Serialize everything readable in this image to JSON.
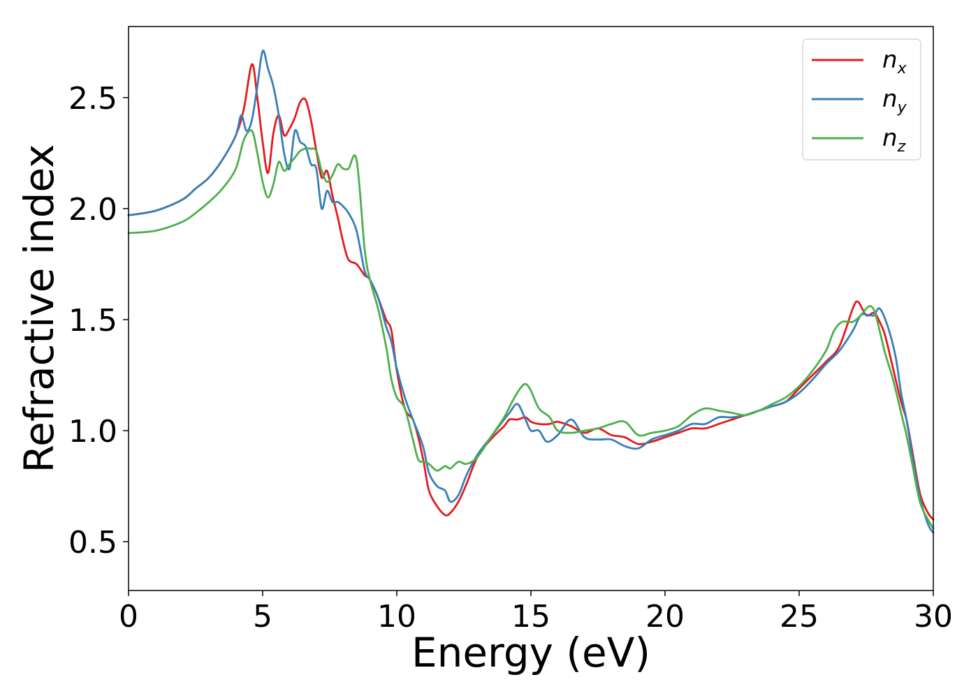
{
  "chart_data": {
    "type": "line",
    "title": "",
    "xlabel": "Energy (eV)",
    "ylabel": "Refractive index",
    "xlim": [
      0,
      30
    ],
    "ylim": [
      0.28,
      2.82
    ],
    "xticks": [
      "0",
      "5",
      "10",
      "15",
      "20",
      "25",
      "30"
    ],
    "yticks": [
      "0.5",
      "1.0",
      "1.5",
      "2.0",
      "2.5"
    ],
    "grid": false,
    "legend_position": "top-right",
    "series": [
      {
        "name": "n_x",
        "label_base": "n",
        "label_sub": "x",
        "color": "#e41a1c",
        "x": [
          0,
          1,
          2,
          2.5,
          3,
          3.5,
          4,
          4.3,
          4.6,
          4.8,
          5.0,
          5.2,
          5.4,
          5.6,
          5.8,
          6.0,
          6.2,
          6.4,
          6.6,
          6.8,
          7.0,
          7.2,
          7.4,
          7.6,
          7.8,
          8.0,
          8.2,
          8.5,
          8.8,
          9.0,
          9.3,
          9.6,
          9.8,
          10.0,
          10.3,
          10.6,
          10.8,
          11.0,
          11.2,
          11.5,
          11.8,
          12.0,
          12.3,
          12.6,
          13.0,
          13.5,
          14.0,
          14.2,
          14.5,
          14.8,
          15.0,
          15.3,
          15.7,
          16.0,
          16.5,
          17.0,
          17.5,
          18.0,
          18.5,
          19.0,
          19.5,
          20.0,
          20.5,
          21.0,
          21.5,
          22.0,
          22.5,
          23.0,
          23.5,
          24.0,
          24.5,
          25.0,
          25.5,
          26.0,
          26.5,
          27.0,
          27.2,
          27.5,
          27.8,
          28.0,
          28.2,
          28.5,
          28.8,
          29.0,
          29.2,
          29.5,
          29.8,
          30.0
        ],
        "y": [
          1.97,
          1.99,
          2.04,
          2.09,
          2.14,
          2.22,
          2.33,
          2.45,
          2.65,
          2.5,
          2.3,
          2.16,
          2.34,
          2.42,
          2.33,
          2.36,
          2.41,
          2.48,
          2.49,
          2.4,
          2.26,
          2.14,
          2.17,
          2.06,
          1.96,
          1.85,
          1.77,
          1.75,
          1.7,
          1.68,
          1.6,
          1.5,
          1.45,
          1.27,
          1.1,
          1.05,
          0.97,
          0.86,
          0.73,
          0.66,
          0.62,
          0.63,
          0.68,
          0.76,
          0.88,
          0.96,
          1.02,
          1.05,
          1.05,
          1.06,
          1.04,
          1.03,
          1.03,
          1.04,
          1.02,
          0.99,
          1.01,
          0.98,
          0.97,
          0.94,
          0.95,
          0.97,
          0.99,
          1.01,
          1.01,
          1.03,
          1.05,
          1.07,
          1.09,
          1.11,
          1.13,
          1.19,
          1.25,
          1.31,
          1.38,
          1.55,
          1.58,
          1.52,
          1.53,
          1.49,
          1.43,
          1.28,
          1.13,
          1.05,
          0.92,
          0.72,
          0.63,
          0.6
        ]
      },
      {
        "name": "n_y",
        "label_base": "n",
        "label_sub": "y",
        "color": "#377eb8",
        "x": [
          0,
          1,
          2,
          2.5,
          3,
          3.5,
          4,
          4.2,
          4.4,
          4.6,
          4.8,
          5.0,
          5.2,
          5.4,
          5.6,
          5.8,
          6.0,
          6.2,
          6.4,
          6.6,
          6.8,
          7.0,
          7.2,
          7.4,
          7.6,
          7.8,
          8.0,
          8.2,
          8.5,
          8.8,
          9.0,
          9.3,
          9.6,
          9.8,
          10.0,
          10.3,
          10.6,
          10.8,
          11.0,
          11.2,
          11.5,
          11.8,
          12.0,
          12.3,
          12.6,
          13.0,
          13.5,
          14.0,
          14.2,
          14.5,
          14.8,
          15.0,
          15.3,
          15.6,
          16.0,
          16.5,
          17.0,
          17.5,
          18.0,
          18.5,
          19.0,
          19.5,
          20.0,
          20.5,
          21.0,
          21.5,
          22.0,
          22.5,
          23.0,
          23.5,
          24.0,
          24.5,
          25.0,
          25.5,
          26.0,
          26.5,
          27.0,
          27.3,
          27.6,
          27.8,
          28.0,
          28.3,
          28.6,
          28.8,
          29.0,
          29.2,
          29.5,
          29.8,
          30.0
        ],
        "y": [
          1.97,
          1.99,
          2.04,
          2.09,
          2.14,
          2.22,
          2.33,
          2.42,
          2.35,
          2.4,
          2.55,
          2.71,
          2.63,
          2.55,
          2.42,
          2.25,
          2.18,
          2.35,
          2.3,
          2.28,
          2.2,
          2.18,
          2.0,
          2.08,
          2.03,
          2.03,
          2.01,
          1.98,
          1.9,
          1.72,
          1.68,
          1.6,
          1.47,
          1.4,
          1.28,
          1.15,
          1.05,
          0.99,
          0.92,
          0.81,
          0.75,
          0.73,
          0.68,
          0.71,
          0.8,
          0.89,
          0.97,
          1.05,
          1.08,
          1.12,
          1.05,
          1.0,
          1.0,
          0.95,
          0.98,
          1.05,
          0.97,
          0.96,
          0.96,
          0.93,
          0.92,
          0.96,
          0.98,
          1.0,
          1.03,
          1.03,
          1.06,
          1.06,
          1.07,
          1.09,
          1.11,
          1.13,
          1.17,
          1.23,
          1.3,
          1.36,
          1.45,
          1.52,
          1.52,
          1.52,
          1.55,
          1.47,
          1.33,
          1.17,
          1.05,
          0.9,
          0.7,
          0.58,
          0.54
        ]
      },
      {
        "name": "n_z",
        "label_base": "n",
        "label_sub": "z",
        "color": "#4daf4a",
        "x": [
          0,
          1,
          2,
          2.5,
          3,
          3.5,
          4,
          4.3,
          4.6,
          4.8,
          5.0,
          5.2,
          5.4,
          5.6,
          5.8,
          6.0,
          6.2,
          6.4,
          6.6,
          6.8,
          7.0,
          7.2,
          7.4,
          7.6,
          7.8,
          8.0,
          8.2,
          8.5,
          8.8,
          9.0,
          9.3,
          9.6,
          9.8,
          10.0,
          10.3,
          10.6,
          10.8,
          11.0,
          11.2,
          11.5,
          11.8,
          12.0,
          12.3,
          12.6,
          13.0,
          13.5,
          14.0,
          14.3,
          14.6,
          14.8,
          15.0,
          15.3,
          15.7,
          16.0,
          16.5,
          17.0,
          17.5,
          18.0,
          18.5,
          19.0,
          19.5,
          20.0,
          20.5,
          21.0,
          21.5,
          22.0,
          22.5,
          23.0,
          23.5,
          24.0,
          24.5,
          25.0,
          25.5,
          26.0,
          26.3,
          26.6,
          27.0,
          27.3,
          27.6,
          27.8,
          28.0,
          28.2,
          28.5,
          28.8,
          29.0,
          29.2,
          29.5,
          29.8,
          30.0
        ],
        "y": [
          1.89,
          1.9,
          1.94,
          1.98,
          2.03,
          2.09,
          2.18,
          2.31,
          2.35,
          2.25,
          2.12,
          2.05,
          2.11,
          2.21,
          2.17,
          2.2,
          2.23,
          2.26,
          2.27,
          2.27,
          2.26,
          2.17,
          2.12,
          2.15,
          2.2,
          2.18,
          2.18,
          2.22,
          1.82,
          1.68,
          1.55,
          1.38,
          1.23,
          1.15,
          1.1,
          0.96,
          0.87,
          0.86,
          0.85,
          0.82,
          0.84,
          0.83,
          0.86,
          0.85,
          0.88,
          0.97,
          1.06,
          1.13,
          1.19,
          1.21,
          1.18,
          1.1,
          1.06,
          1.0,
          0.99,
          1.0,
          1.01,
          1.03,
          1.04,
          0.98,
          0.99,
          1.0,
          1.02,
          1.07,
          1.1,
          1.09,
          1.08,
          1.07,
          1.09,
          1.12,
          1.15,
          1.2,
          1.27,
          1.36,
          1.45,
          1.49,
          1.49,
          1.52,
          1.56,
          1.54,
          1.45,
          1.35,
          1.23,
          1.08,
          0.98,
          0.86,
          0.68,
          0.6,
          0.56
        ]
      }
    ]
  }
}
